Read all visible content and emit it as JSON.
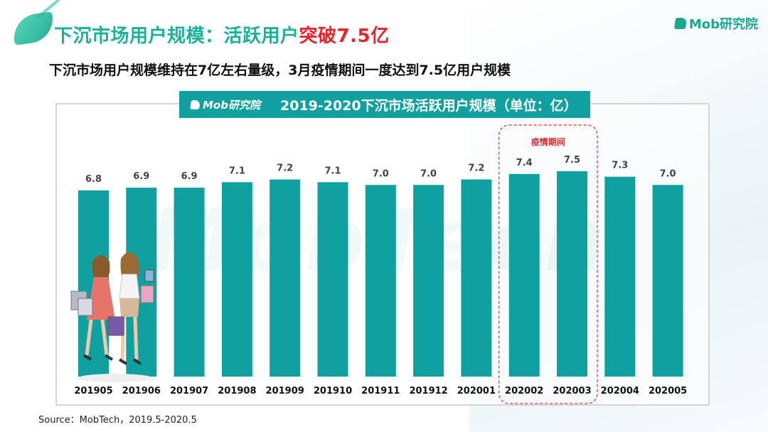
{
  "header": {
    "title_main": "下沉市场用户规模：活跃用户",
    "title_highlight": "突破7.5亿",
    "logo_text": "Mob研究院"
  },
  "subtitle": "下沉市场用户规模维持在7亿左右量级，3月疫情期间一度达到7.5亿用户规模",
  "chart_header": {
    "logo_text": "Mob研究院",
    "title": "2019-2020下沉市场活跃用户规模（单位：亿）"
  },
  "watermark": "MobTech",
  "source": "Source：MobTech，2019.5-2020.5",
  "colors": {
    "accent": "#1ab19a",
    "bar": "#10a0a0",
    "highlight_red": "#e8232b"
  },
  "chart_data": {
    "type": "bar",
    "title": "2019-2020下沉市场活跃用户规模（单位：亿）",
    "categories": [
      "201905",
      "201906",
      "201907",
      "201908",
      "201909",
      "201910",
      "201911",
      "201912",
      "202001",
      "202002",
      "202003",
      "202004",
      "202005"
    ],
    "values": [
      6.8,
      6.9,
      6.9,
      7.1,
      7.2,
      7.1,
      7.0,
      7.0,
      7.2,
      7.4,
      7.5,
      7.3,
      7.0
    ],
    "value_labels": [
      "6.8",
      "6.9",
      "6.9",
      "7.1",
      "7.2",
      "7.1",
      "7.0",
      "7.0",
      "7.2",
      "7.4",
      "7.5",
      "7.3",
      "7.0"
    ],
    "xlabel": "",
    "ylabel": "",
    "ylim": [
      0,
      7.5
    ],
    "grid": false,
    "legend": "none",
    "annotation": {
      "text": "疫情期间",
      "categories": [
        "202002",
        "202003"
      ]
    }
  }
}
